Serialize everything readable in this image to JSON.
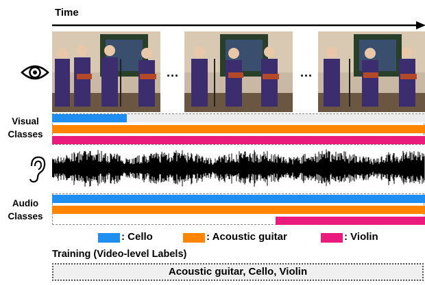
{
  "timeline": {
    "label": "Time"
  },
  "frames": {
    "ellipsis": "..."
  },
  "visual": {
    "label_line1": "Visual",
    "label_line2": "Classes"
  },
  "audio": {
    "label_line1": "Audio",
    "label_line2": "Classes"
  },
  "classes": [
    {
      "name": "Cello",
      "legend": ": Cello",
      "color": "#1e8ff0"
    },
    {
      "name": "Acoustic guitar",
      "legend": ": Acoustic guitar",
      "color": "#ff8400"
    },
    {
      "name": "Violin",
      "legend": ": Violin",
      "color": "#ea1b7c"
    }
  ],
  "visual_tracks": [
    {
      "class": "Cello",
      "start": 0.0,
      "end": 0.2
    },
    {
      "class": "Acoustic guitar",
      "start": 0.0,
      "end": 1.0
    },
    {
      "class": "Violin",
      "start": 0.0,
      "end": 1.0
    }
  ],
  "audio_tracks": [
    {
      "class": "Cello",
      "start": 0.0,
      "end": 1.0
    },
    {
      "class": "Acoustic guitar",
      "start": 0.0,
      "end": 1.0
    },
    {
      "class": "Violin",
      "start": 0.6,
      "end": 1.0
    }
  ],
  "training": {
    "title": "Training (Video-level Labels)",
    "labels": "Acoustic guitar, Cello, Violin"
  }
}
